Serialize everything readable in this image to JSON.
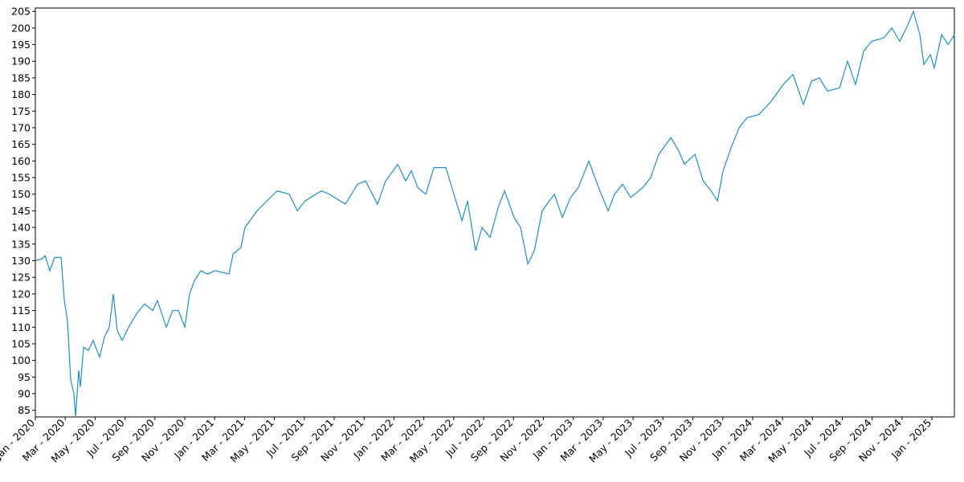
{
  "chart_data": {
    "type": "line",
    "x": [
      0,
      0.43,
      0.65,
      0.97,
      1.29,
      1.72,
      1.94,
      2.15,
      2.37,
      2.58,
      2.69,
      2.9,
      3.01,
      3.23,
      3.55,
      3.87,
      4.3,
      4.62,
      4.95,
      5.22,
      5.48,
      5.81,
      6.24,
      6.77,
      7.31,
      7.85,
      8.17,
      8.76,
      9.19,
      9.57,
      10,
      10.32,
      10.65,
      11.08,
      11.51,
      12.04,
      12.96,
      13.23,
      13.76,
      14.03,
      14.84,
      16.18,
      16.99,
      17.53,
      18.06,
      19.14,
      19.68,
      20.75,
      21.56,
      22.1,
      22.9,
      23.44,
      24.25,
      24.78,
      25.16,
      25.59,
      26.13,
      26.67,
      27.47,
      28.01,
      28.55,
      28.92,
      29.46,
      29.89,
      30.43,
      30.97,
      31.4,
      32.04,
      32.47,
      32.96,
      33.39,
      33.92,
      34.73,
      35.27,
      35.81,
      36.34,
      37.04,
      37.69,
      38.33,
      38.76,
      39.3,
      39.84,
      40.65,
      41.18,
      41.72,
      42.53,
      43.06,
      43.44,
      44.14,
      44.68,
      45.22,
      45.65,
      46.02,
      46.56,
      47.1,
      47.63,
      48.44,
      49.25,
      50.05,
      50.7,
      51.4,
      51.94,
      52.47,
      53.01,
      53.82,
      54.35,
      54.89,
      55.43,
      55.97,
      56.77,
      57.31,
      57.85,
      58.39,
      58.76,
      59.19,
      59.46,
      59.89,
      60.16,
      60.65,
      61.08,
      61.51
    ],
    "series": [
      {
        "color": "#1b8fd2",
        "values": [
          130,
          130.5,
          131.5,
          127,
          131,
          131,
          118,
          112,
          94,
          90,
          83,
          97,
          92,
          104,
          103,
          106,
          101,
          107,
          110,
          120,
          109,
          106,
          110,
          114,
          117,
          115,
          118,
          110,
          115,
          115,
          110,
          120,
          124,
          127,
          126,
          127,
          126,
          132,
          134,
          140,
          145,
          151,
          150,
          145,
          148,
          151,
          150,
          147,
          153,
          154,
          147,
          154,
          159,
          154,
          157,
          152,
          150,
          158,
          158,
          150,
          142,
          148,
          133,
          140,
          137,
          146,
          151,
          143,
          140,
          129,
          133,
          145,
          150,
          143,
          149,
          152,
          160,
          152,
          145,
          150,
          153,
          149,
          152,
          155,
          162,
          167,
          163,
          159,
          162,
          154,
          151,
          148,
          157,
          164,
          170,
          173,
          174,
          178,
          183,
          186,
          177,
          184,
          185,
          181,
          182,
          190,
          183,
          193,
          196,
          197,
          200,
          196,
          201,
          205,
          198,
          189,
          192,
          188,
          198,
          195,
          198
        ]
      }
    ],
    "xlim": [
      0,
      61.5
    ],
    "xticks": [
      {
        "value": 0,
        "label": "Jan - 2020"
      },
      {
        "value": 2,
        "label": "Mar - 2020"
      },
      {
        "value": 4,
        "label": "May - 2020"
      },
      {
        "value": 6,
        "label": "Jul - 2020"
      },
      {
        "value": 8,
        "label": "Sep - 2020"
      },
      {
        "value": 10,
        "label": "Nov - 2020"
      },
      {
        "value": 12,
        "label": "Jan - 2021"
      },
      {
        "value": 14,
        "label": "Mar - 2021"
      },
      {
        "value": 16,
        "label": "May - 2021"
      },
      {
        "value": 18,
        "label": "Jul - 2021"
      },
      {
        "value": 20,
        "label": "Sep - 2021"
      },
      {
        "value": 22,
        "label": "Nov - 2021"
      },
      {
        "value": 24,
        "label": "Jan - 2022"
      },
      {
        "value": 26,
        "label": "Mar - 2022"
      },
      {
        "value": 28,
        "label": "May - 2022"
      },
      {
        "value": 30,
        "label": "Jul - 2022"
      },
      {
        "value": 32,
        "label": "Sep - 2022"
      },
      {
        "value": 34,
        "label": "Nov - 2022"
      },
      {
        "value": 36,
        "label": "Jan - 2023"
      },
      {
        "value": 38,
        "label": "Mar - 2023"
      },
      {
        "value": 40,
        "label": "May - 2023"
      },
      {
        "value": 42,
        "label": "Jul - 2023"
      },
      {
        "value": 44,
        "label": "Sep - 2023"
      },
      {
        "value": 46,
        "label": "Nov - 2023"
      },
      {
        "value": 48,
        "label": "Jan - 2024"
      },
      {
        "value": 50,
        "label": "Mar - 2024"
      },
      {
        "value": 52,
        "label": "May - 2024"
      },
      {
        "value": 54,
        "label": "Jul - 2024"
      },
      {
        "value": 56,
        "label": "Sep - 2024"
      },
      {
        "value": 58,
        "label": "Nov - 2024"
      },
      {
        "value": 60,
        "label": "Jan - 2025"
      }
    ],
    "ylim": [
      83,
      206
    ],
    "yticks": [
      85,
      90,
      95,
      100,
      105,
      110,
      115,
      120,
      125,
      130,
      135,
      140,
      145,
      150,
      155,
      160,
      165,
      170,
      175,
      180,
      185,
      190,
      195,
      200,
      205
    ],
    "grid": false
  }
}
